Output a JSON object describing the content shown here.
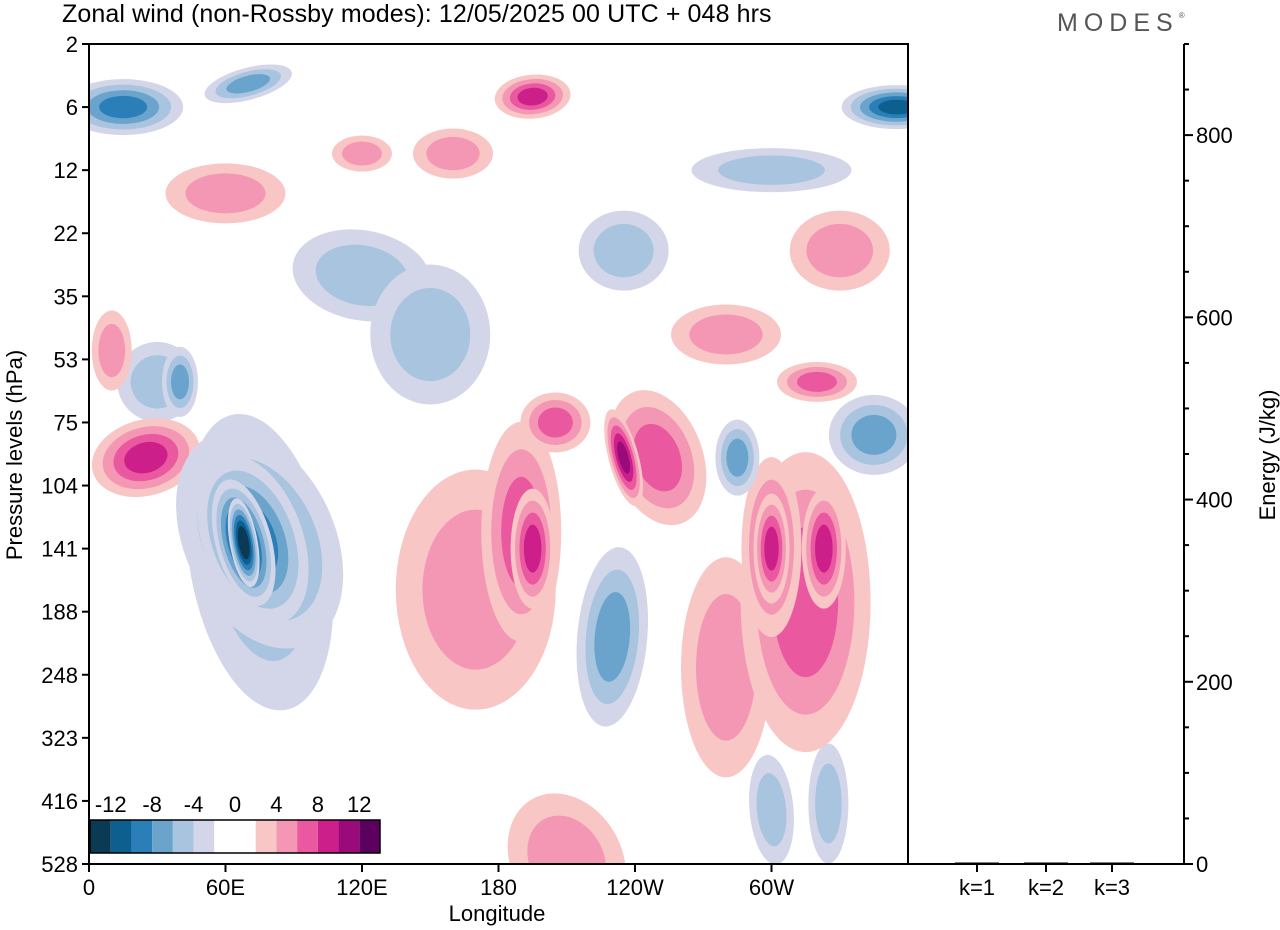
{
  "title": "Zonal wind (non-Rossby modes):  12/05/2025  00 UTC  + 048 hrs",
  "brand": "MODES",
  "brand_mark": "®",
  "chart_data": [
    {
      "type": "heatmap",
      "title": "Zonal wind (non-Rossby modes):  12/05/2025  00 UTC  + 048 hrs",
      "xlabel": "Longitude",
      "ylabel": "Pressure levels (hPa)",
      "x_ticks": [
        "0",
        "60E",
        "120E",
        "180",
        "120W",
        "60W"
      ],
      "x_tick_values": [
        0,
        60,
        120,
        180,
        240,
        300
      ],
      "xlim": [
        0,
        360
      ],
      "y_ticks": [
        "2",
        "6",
        "12",
        "22",
        "35",
        "53",
        "75",
        "104",
        "141",
        "188",
        "248",
        "323",
        "416",
        "528"
      ],
      "y_scale": "pressure levels (non-linear, top = 2 hPa)",
      "colorbar": {
        "labels": [
          "-12",
          "-8",
          "-4",
          "0",
          "4",
          "8",
          "12"
        ],
        "colors": [
          "#0b3a55",
          "#0d5f8f",
          "#2a7fb8",
          "#6aa3cc",
          "#a9c4df",
          "#d3d6e8",
          "#ffffff",
          "#ffffff",
          "#f9c6c6",
          "#f497b5",
          "#ea589f",
          "#cc1f8a",
          "#9a0a7a",
          "#5c0060"
        ],
        "placement": "bottom-left"
      },
      "features": [
        {
          "name": "negative jet core",
          "lon": 68,
          "level": 141,
          "value": -14
        },
        {
          "name": "negative band upper",
          "lon": 15,
          "level": 6,
          "value": -8
        },
        {
          "name": "negative band upper right",
          "lon": 350,
          "level": 6,
          "value": -8
        },
        {
          "name": "positive core",
          "lon": 25,
          "level": 90,
          "value": 8
        },
        {
          "name": "positive core",
          "lon": 195,
          "level": 6,
          "value": 8
        },
        {
          "name": "positive core",
          "lon": 195,
          "level": 141,
          "value": 8
        },
        {
          "name": "positive core",
          "lon": 235,
          "level": 90,
          "value": 8
        },
        {
          "name": "positive core",
          "lon": 300,
          "level": 141,
          "value": 8
        },
        {
          "name": "positive core",
          "lon": 323,
          "level": 141,
          "value": 8
        },
        {
          "name": "negative core",
          "lon": 285,
          "level": 90,
          "value": -6
        }
      ],
      "grid": false
    },
    {
      "type": "bar",
      "categories": [
        "k=1",
        "k=2",
        "k=3"
      ],
      "values": [
        1,
        1,
        1
      ],
      "ylabel": "Energy (J/kg)",
      "y_ticks": [
        "0",
        "200",
        "400",
        "600",
        "800"
      ],
      "ylim": [
        0,
        900
      ]
    }
  ]
}
